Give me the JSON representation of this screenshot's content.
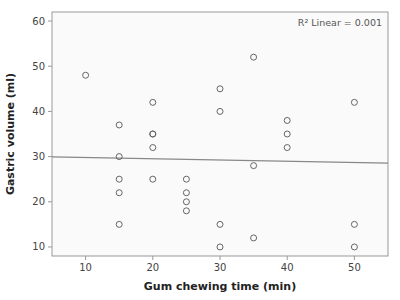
{
  "chart_data": {
    "type": "scatter",
    "x_label": "Gum chewing time (min)",
    "y_label": "Gastric volume (ml)",
    "annotation": "R² Linear = 0.001",
    "xlim": [
      5,
      55
    ],
    "ylim": [
      8,
      62
    ],
    "xticks": [
      10,
      20,
      30,
      40,
      50
    ],
    "yticks": [
      10,
      20,
      30,
      40,
      50,
      60
    ],
    "grid": false,
    "series": [
      {
        "type": "scatter",
        "marker": "open",
        "color": "#666666",
        "x": [
          10,
          15,
          15,
          15,
          15,
          15,
          20,
          20,
          20,
          20,
          20,
          25,
          25,
          25,
          25,
          30,
          30,
          30,
          30,
          35,
          35,
          35,
          40,
          40,
          40,
          50,
          50,
          50
        ],
        "values": [
          48,
          37,
          25,
          22,
          15,
          30,
          42,
          35,
          35,
          32,
          25,
          20,
          25,
          22,
          18,
          45,
          40,
          15,
          10,
          52,
          28,
          12,
          38,
          35,
          32,
          15,
          42,
          10
        ]
      },
      {
        "type": "line",
        "line_style": "solid",
        "color": "#888888",
        "x": [
          5,
          55
        ],
        "values": [
          29.95,
          28.55
        ]
      }
    ]
  }
}
